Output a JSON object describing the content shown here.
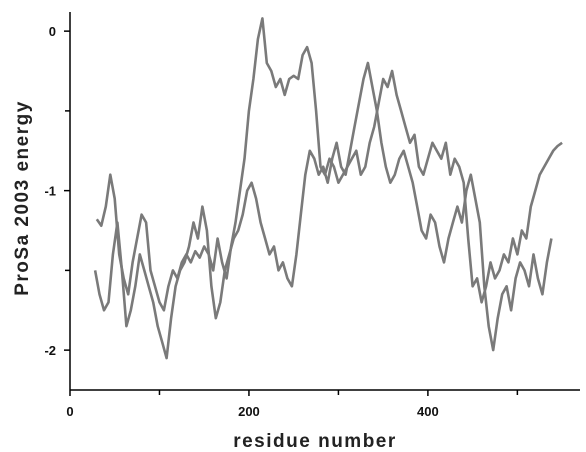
{
  "chart_data": {
    "type": "line",
    "title": "",
    "xlabel": "residue number",
    "ylabel": "ProSa 2003 energy",
    "xlim": [
      0,
      570
    ],
    "ylim": [
      -2.25,
      0.12
    ],
    "x_ticks": [
      {
        "value": 0,
        "label": "0"
      },
      {
        "value": 200,
        "label": "200"
      },
      {
        "value": 400,
        "label": "400"
      }
    ],
    "x_minor_ticks": [
      100,
      300,
      500
    ],
    "y_ticks": [
      {
        "value": 0,
        "label": "0"
      },
      {
        "value": -1,
        "label": "-1"
      },
      {
        "value": -2,
        "label": "-2"
      }
    ],
    "y_minor_ticks": [
      -0.5,
      -1.5
    ],
    "grid": false,
    "legend": "none",
    "line_color": "#7a7a7a",
    "series": [
      {
        "x": [
          30,
          35,
          40,
          45,
          50,
          55,
          60,
          65,
          70,
          75,
          80,
          85,
          90,
          95,
          100,
          105,
          110,
          115,
          120,
          125,
          130,
          135,
          140,
          145,
          150,
          155,
          160,
          165,
          170,
          175,
          180,
          185,
          190,
          195,
          200,
          205,
          210,
          215,
          220,
          225,
          230,
          235,
          240,
          245,
          250,
          255,
          260,
          265,
          270,
          275,
          280,
          285,
          290,
          295,
          300,
          305,
          310,
          315,
          320,
          325,
          330,
          335,
          340,
          345,
          350,
          355,
          360,
          365,
          370,
          375,
          380,
          385,
          390,
          395,
          400,
          405,
          410,
          415,
          420,
          425,
          430,
          435,
          440,
          445,
          450,
          455,
          460,
          465,
          470,
          475,
          480,
          485,
          490,
          495,
          500,
          505,
          510,
          515,
          520,
          525,
          530,
          535,
          540,
          545,
          550
        ],
        "values": [
          -1.18,
          -1.22,
          -1.1,
          -0.9,
          -1.05,
          -1.4,
          -1.55,
          -1.65,
          -1.45,
          -1.3,
          -1.15,
          -1.2,
          -1.5,
          -1.6,
          -1.7,
          -1.75,
          -1.6,
          -1.5,
          -1.55,
          -1.45,
          -1.4,
          -1.45,
          -1.38,
          -1.42,
          -1.35,
          -1.4,
          -1.5,
          -1.3,
          -1.45,
          -1.55,
          -1.35,
          -1.2,
          -1.0,
          -0.8,
          -0.5,
          -0.3,
          -0.05,
          0.08,
          -0.2,
          -0.25,
          -0.35,
          -0.3,
          -0.4,
          -0.3,
          -0.28,
          -0.3,
          -0.15,
          -0.1,
          -0.2,
          -0.5,
          -0.85,
          -0.9,
          -0.8,
          -0.85,
          -0.95,
          -0.9,
          -0.85,
          -0.8,
          -0.75,
          -0.9,
          -0.85,
          -0.7,
          -0.6,
          -0.45,
          -0.3,
          -0.35,
          -0.25,
          -0.4,
          -0.5,
          -0.6,
          -0.7,
          -0.65,
          -0.85,
          -0.9,
          -0.8,
          -0.7,
          -0.75,
          -0.8,
          -0.7,
          -0.9,
          -0.8,
          -0.85,
          -0.95,
          -1.3,
          -1.6,
          -1.55,
          -1.7,
          -1.6,
          -1.45,
          -1.55,
          -1.5,
          -1.4,
          -1.45,
          -1.3,
          -1.4,
          -1.25,
          -1.3,
          -1.1,
          -1.0,
          -0.9,
          -0.85,
          -0.8,
          -0.75,
          -0.72,
          -0.7
        ]
      },
      {
        "x": [
          28,
          33,
          38,
          43,
          48,
          53,
          58,
          63,
          68,
          73,
          78,
          83,
          88,
          93,
          98,
          103,
          108,
          113,
          118,
          123,
          128,
          133,
          138,
          143,
          148,
          153,
          158,
          163,
          168,
          173,
          178,
          183,
          188,
          193,
          198,
          203,
          208,
          213,
          218,
          223,
          228,
          233,
          238,
          243,
          248,
          253,
          258,
          263,
          268,
          273,
          278,
          283,
          288,
          293,
          298,
          303,
          308,
          313,
          318,
          323,
          328,
          333,
          338,
          343,
          348,
          353,
          358,
          363,
          368,
          373,
          378,
          383,
          388,
          393,
          398,
          403,
          408,
          413,
          418,
          423,
          428,
          433,
          438,
          443,
          448,
          453,
          458,
          463,
          468,
          473,
          478,
          483,
          488,
          493,
          498,
          503,
          508,
          513,
          518,
          523,
          528,
          533,
          538
        ],
        "values": [
          -1.5,
          -1.65,
          -1.75,
          -1.7,
          -1.4,
          -1.2,
          -1.5,
          -1.85,
          -1.75,
          -1.6,
          -1.4,
          -1.5,
          -1.6,
          -1.7,
          -1.85,
          -1.95,
          -2.05,
          -1.8,
          -1.6,
          -1.5,
          -1.45,
          -1.35,
          -1.2,
          -1.3,
          -1.1,
          -1.25,
          -1.6,
          -1.8,
          -1.7,
          -1.5,
          -1.4,
          -1.3,
          -1.25,
          -1.15,
          -1.0,
          -0.95,
          -1.05,
          -1.2,
          -1.3,
          -1.4,
          -1.35,
          -1.5,
          -1.45,
          -1.55,
          -1.6,
          -1.4,
          -1.15,
          -0.9,
          -0.75,
          -0.8,
          -0.9,
          -0.85,
          -0.95,
          -0.8,
          -0.7,
          -0.85,
          -0.9,
          -0.75,
          -0.6,
          -0.45,
          -0.3,
          -0.2,
          -0.35,
          -0.5,
          -0.7,
          -0.85,
          -0.95,
          -0.9,
          -0.8,
          -0.75,
          -0.85,
          -0.95,
          -1.1,
          -1.25,
          -1.3,
          -1.15,
          -1.2,
          -1.35,
          -1.45,
          -1.3,
          -1.2,
          -1.1,
          -1.2,
          -1.0,
          -0.9,
          -1.05,
          -1.2,
          -1.6,
          -1.85,
          -2.0,
          -1.8,
          -1.65,
          -1.6,
          -1.75,
          -1.55,
          -1.45,
          -1.5,
          -1.6,
          -1.4,
          -1.55,
          -1.65,
          -1.45,
          -1.3
        ]
      }
    ]
  }
}
